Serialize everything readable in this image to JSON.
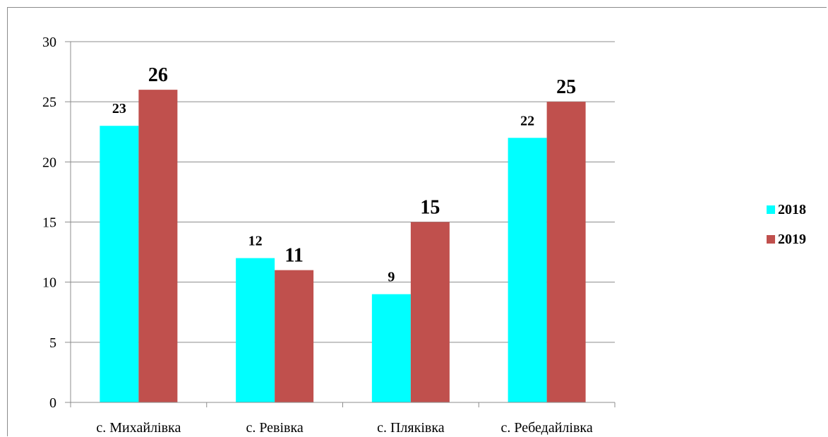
{
  "chart_data": {
    "type": "bar",
    "categories": [
      "с. Михайлівка",
      "с. Ревівка",
      "с. Пляківка",
      "с. Ребедайлівка"
    ],
    "series": [
      {
        "name": "2018",
        "values": [
          23,
          12,
          9,
          22
        ],
        "color": "#00ffff"
      },
      {
        "name": "2019",
        "values": [
          26,
          11,
          15,
          25
        ],
        "color": "#c0504d"
      }
    ],
    "ylim": [
      0,
      30
    ],
    "yticks": [
      0,
      5,
      10,
      15,
      20,
      25,
      30
    ],
    "grid": true,
    "legend": "right",
    "title": "",
    "xlabel": "",
    "ylabel": ""
  }
}
